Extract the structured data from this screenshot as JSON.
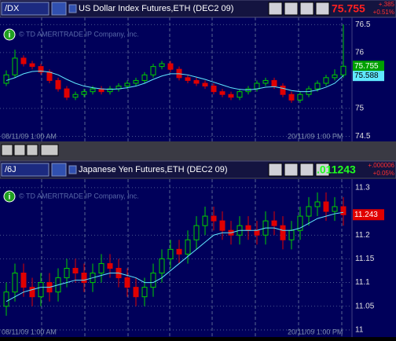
{
  "chart_data": [
    {
      "type": "candlestick",
      "symbol": "/DX",
      "title": "US Dollar Index Futures,ETH (DEC2 09)",
      "change": "+.385",
      "change_pct": "+0.51%",
      "last_color": "#ff2020",
      "watermark": "© TD AMERITRADE IP Company, Inc.",
      "x_labels": [
        "08/11/09 1:00 AM",
        "20/11/09 1:00 PM"
      ],
      "up_color": "#00d000",
      "down_color": "#e00000",
      "ma_color": "#60e8ff",
      "open": [
        75.45,
        75.6,
        75.9,
        75.8,
        75.75,
        75.65,
        75.5,
        75.35,
        75.2,
        75.25,
        75.3,
        75.35,
        75.3,
        75.35,
        75.4,
        75.45,
        75.5,
        75.6,
        75.75,
        75.8,
        75.7,
        75.55,
        75.5,
        75.45,
        75.4,
        75.3,
        75.25,
        75.2,
        75.3,
        75.35,
        75.45,
        75.5,
        75.4,
        75.25,
        75.15,
        75.25,
        75.35,
        75.45,
        75.55,
        75.6
      ],
      "high": [
        75.68,
        76.05,
        75.95,
        75.85,
        75.8,
        75.7,
        75.55,
        75.4,
        75.3,
        75.35,
        75.4,
        75.4,
        75.4,
        75.45,
        75.5,
        75.55,
        75.65,
        75.8,
        75.85,
        75.85,
        75.75,
        75.6,
        75.55,
        75.5,
        75.45,
        75.35,
        75.3,
        75.35,
        75.4,
        75.5,
        75.55,
        75.55,
        75.45,
        75.3,
        75.3,
        75.4,
        75.5,
        75.6,
        75.7,
        76.5
      ],
      "low": [
        75.4,
        75.55,
        75.75,
        75.7,
        75.6,
        75.45,
        75.3,
        75.15,
        75.15,
        75.2,
        75.25,
        75.25,
        75.25,
        75.3,
        75.35,
        75.4,
        75.45,
        75.55,
        75.7,
        75.65,
        75.5,
        75.45,
        75.4,
        75.35,
        75.25,
        75.2,
        75.15,
        75.15,
        75.25,
        75.3,
        75.4,
        75.35,
        75.2,
        75.1,
        75.1,
        75.2,
        75.3,
        75.4,
        75.5,
        75.55
      ],
      "close": [
        75.6,
        75.9,
        75.8,
        75.75,
        75.65,
        75.5,
        75.35,
        75.2,
        75.25,
        75.3,
        75.35,
        75.3,
        75.35,
        75.4,
        75.45,
        75.5,
        75.6,
        75.75,
        75.8,
        75.7,
        75.55,
        75.5,
        75.45,
        75.4,
        75.3,
        75.25,
        75.2,
        75.3,
        75.35,
        75.45,
        75.5,
        75.4,
        75.25,
        75.15,
        75.25,
        75.35,
        75.45,
        75.55,
        75.6,
        75.755
      ],
      "ma": [
        75.5,
        75.55,
        75.62,
        75.66,
        75.67,
        75.65,
        75.6,
        75.52,
        75.45,
        75.4,
        75.37,
        75.35,
        75.34,
        75.35,
        75.37,
        75.4,
        75.45,
        75.52,
        75.58,
        75.62,
        75.62,
        75.6,
        75.56,
        75.52,
        75.47,
        75.42,
        75.37,
        75.34,
        75.33,
        75.35,
        75.38,
        75.39,
        75.36,
        75.32,
        75.3,
        75.3,
        75.33,
        75.38,
        75.45,
        75.588
      ],
      "ylim": [
        74.41,
        76.63
      ],
      "yticks": [
        74.5,
        75,
        76,
        76.5
      ],
      "grid": true
    },
    {
      "type": "candlestick",
      "symbol": "/6J",
      "title": "Japanese Yen Futures,ETH (DEC2 09)",
      "last_quote": ".011243",
      "change": "+.000006",
      "change_pct": "+0.05%",
      "last_color": "#20ff20",
      "watermark": "© TD AMERITRADE IP Company, Inc.",
      "x_labels": [
        "08/11/09 1:00 AM",
        "20/11/09 1:00 PM"
      ],
      "up_color": "#00d000",
      "down_color": "#e00000",
      "ma_color": "#60e8ff",
      "open": [
        11.05,
        11.08,
        11.12,
        11.09,
        11.07,
        11.1,
        11.08,
        11.11,
        11.13,
        11.12,
        11.1,
        11.12,
        11.14,
        11.13,
        11.11,
        11.09,
        11.07,
        11.09,
        11.12,
        11.15,
        11.17,
        11.16,
        11.19,
        11.22,
        11.24,
        11.23,
        11.21,
        11.2,
        11.22,
        11.21,
        11.2,
        11.23,
        11.22,
        11.19,
        11.21,
        11.24,
        11.26,
        11.27,
        11.25,
        11.26
      ],
      "high": [
        11.1,
        11.14,
        11.14,
        11.11,
        11.12,
        11.12,
        11.13,
        11.15,
        11.15,
        11.14,
        11.14,
        11.16,
        11.16,
        11.15,
        11.13,
        11.11,
        11.11,
        11.14,
        11.17,
        11.19,
        11.19,
        11.21,
        11.24,
        11.26,
        11.26,
        11.25,
        11.23,
        11.24,
        11.24,
        11.23,
        11.25,
        11.25,
        11.24,
        11.23,
        11.26,
        11.28,
        11.29,
        11.29,
        11.28,
        11.28
      ],
      "low": [
        11.03,
        11.06,
        11.07,
        11.05,
        11.05,
        11.06,
        11.06,
        11.09,
        11.1,
        11.08,
        11.08,
        11.1,
        11.11,
        11.09,
        11.07,
        11.05,
        11.05,
        11.07,
        11.1,
        11.13,
        11.14,
        11.14,
        11.17,
        11.2,
        11.21,
        11.19,
        11.18,
        11.18,
        11.19,
        11.18,
        11.18,
        11.2,
        11.17,
        11.17,
        11.19,
        11.22,
        11.24,
        11.23,
        11.23,
        11.22
      ],
      "close": [
        11.08,
        11.12,
        11.09,
        11.07,
        11.1,
        11.08,
        11.11,
        11.13,
        11.12,
        11.1,
        11.12,
        11.14,
        11.13,
        11.11,
        11.09,
        11.07,
        11.09,
        11.12,
        11.15,
        11.17,
        11.16,
        11.19,
        11.22,
        11.24,
        11.23,
        11.21,
        11.2,
        11.22,
        11.21,
        11.2,
        11.23,
        11.22,
        11.19,
        11.21,
        11.24,
        11.26,
        11.27,
        11.25,
        11.26,
        11.243
      ],
      "ma": [
        11.06,
        11.07,
        11.08,
        11.085,
        11.09,
        11.09,
        11.095,
        11.1,
        11.105,
        11.105,
        11.11,
        11.115,
        11.12,
        11.12,
        11.115,
        11.11,
        11.1,
        11.1,
        11.11,
        11.125,
        11.14,
        11.155,
        11.17,
        11.185,
        11.2,
        11.205,
        11.205,
        11.21,
        11.21,
        11.21,
        11.215,
        11.215,
        11.21,
        11.21,
        11.215,
        11.225,
        11.235,
        11.24,
        11.245,
        11.248
      ],
      "ylim": [
        10.985,
        11.318
      ],
      "yticks": [
        11,
        11.05,
        11.1,
        11.15,
        11.2,
        11.3
      ],
      "grid": true
    }
  ]
}
